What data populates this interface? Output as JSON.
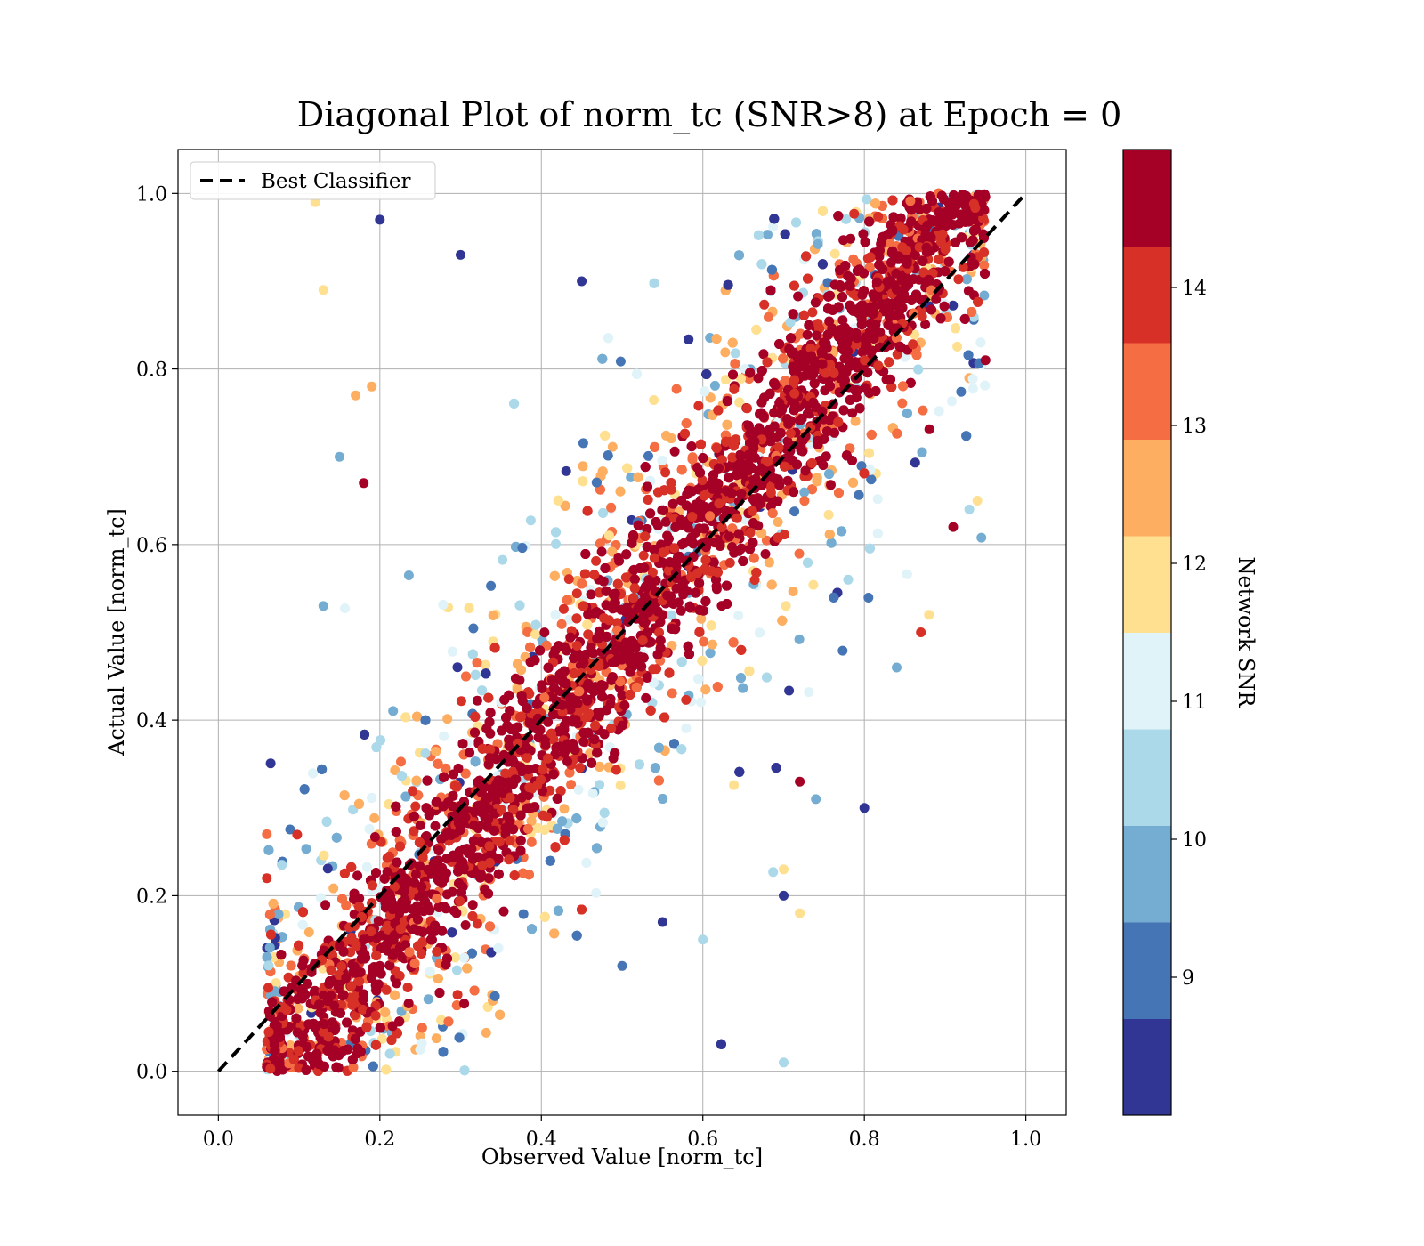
{
  "chart_data": {
    "type": "scatter",
    "title": "Diagonal Plot of norm_tc (SNR>8) at Epoch = 0",
    "xlabel": "Observed Value [norm_tc]",
    "ylabel": "Actual Value [norm_tc]",
    "xlim": [
      -0.05,
      1.05
    ],
    "ylim": [
      -0.05,
      1.05
    ],
    "x_ticks": [
      "0.0",
      "0.2",
      "0.4",
      "0.6",
      "0.8",
      "1.0"
    ],
    "y_ticks": [
      "0.0",
      "0.2",
      "0.4",
      "0.6",
      "0.8",
      "1.0"
    ],
    "grid": true,
    "legend": {
      "placement": "top-left",
      "entries": [
        {
          "label": "Best Classifier",
          "style": "black dashed line"
        }
      ]
    },
    "reference_line": {
      "name": "Best Classifier",
      "x": [
        0.0,
        1.0
      ],
      "y": [
        0.0,
        1.0
      ],
      "color": "#000000",
      "dash": true
    },
    "scatter_description": {
      "color_variable": "Network SNR",
      "note": "dense cloud of thousands of points concentrated along the diagonal y=x; higher SNR points cluster tightly near the diagonal, lower SNR points spread further away",
      "point_extent": {
        "lower_edge": [
          [
            0.06,
            0.0
          ],
          [
            0.95,
            0.8
          ]
        ],
        "upper_edge": [
          [
            0.08,
            0.2
          ],
          [
            0.95,
            1.0
          ]
        ]
      },
      "samples": [
        {
          "x": 0.12,
          "y": 0.05,
          "snr": 14.5
        },
        {
          "x": 0.18,
          "y": 0.15,
          "snr": 14.5
        },
        {
          "x": 0.25,
          "y": 0.28,
          "snr": 14.5
        },
        {
          "x": 0.35,
          "y": 0.33,
          "snr": 14.5
        },
        {
          "x": 0.45,
          "y": 0.47,
          "snr": 14.5
        },
        {
          "x": 0.55,
          "y": 0.52,
          "snr": 14.5
        },
        {
          "x": 0.65,
          "y": 0.68,
          "snr": 14.5
        },
        {
          "x": 0.75,
          "y": 0.72,
          "snr": 14.5
        },
        {
          "x": 0.85,
          "y": 0.88,
          "snr": 14.5
        },
        {
          "x": 0.92,
          "y": 0.95,
          "snr": 14.5
        },
        {
          "x": 0.95,
          "y": 0.81,
          "snr": 14.5
        },
        {
          "x": 0.91,
          "y": 0.62,
          "snr": 14.5
        },
        {
          "x": 0.18,
          "y": 0.67,
          "snr": 14.5
        },
        {
          "x": 0.72,
          "y": 0.33,
          "snr": 14.5
        },
        {
          "x": 0.5,
          "y": 0.12,
          "snr": 9.0
        },
        {
          "x": 0.55,
          "y": 0.17,
          "snr": 8.5
        },
        {
          "x": 0.45,
          "y": 0.9,
          "snr": 8.5
        },
        {
          "x": 0.3,
          "y": 0.93,
          "snr": 8.5
        },
        {
          "x": 0.2,
          "y": 0.97,
          "snr": 8.5
        },
        {
          "x": 0.8,
          "y": 0.3,
          "snr": 8.5
        },
        {
          "x": 0.7,
          "y": 0.2,
          "snr": 8.5
        },
        {
          "x": 0.74,
          "y": 0.31,
          "snr": 9.5
        },
        {
          "x": 0.13,
          "y": 0.53,
          "snr": 9.5
        },
        {
          "x": 0.15,
          "y": 0.7,
          "snr": 9.5
        },
        {
          "x": 0.84,
          "y": 0.46,
          "snr": 9.5
        },
        {
          "x": 0.6,
          "y": 0.15,
          "snr": 10.5
        },
        {
          "x": 0.7,
          "y": 0.01,
          "snr": 10.5
        },
        {
          "x": 0.78,
          "y": 0.56,
          "snr": 10.5
        },
        {
          "x": 0.93,
          "y": 0.64,
          "snr": 10.5
        },
        {
          "x": 0.17,
          "y": 0.77,
          "snr": 12.5
        },
        {
          "x": 0.19,
          "y": 0.78,
          "snr": 12.5
        },
        {
          "x": 0.88,
          "y": 0.52,
          "snr": 12.0
        },
        {
          "x": 0.72,
          "y": 0.18,
          "snr": 12.0
        },
        {
          "x": 0.94,
          "y": 0.65,
          "snr": 12.0
        },
        {
          "x": 0.13,
          "y": 0.89,
          "snr": 11.5
        },
        {
          "x": 0.12,
          "y": 0.99,
          "snr": 11.5
        },
        {
          "x": 0.7,
          "y": 0.23,
          "snr": 11.5
        },
        {
          "x": 0.87,
          "y": 0.5,
          "snr": 14.0
        },
        {
          "x": 0.06,
          "y": 0.27,
          "snr": 13.0
        },
        {
          "x": 0.06,
          "y": 0.22,
          "snr": 14.0
        }
      ]
    }
  },
  "colorbar": {
    "label": "Network SNR",
    "tick_labels": [
      "9",
      "10",
      "11",
      "12",
      "13",
      "14"
    ],
    "colors_bottom_to_top": [
      "#313695",
      "#4575b4",
      "#74add1",
      "#abd9e9",
      "#e0f3f8",
      "#fee090",
      "#fdae61",
      "#f46d43",
      "#d73027",
      "#a50026"
    ]
  }
}
